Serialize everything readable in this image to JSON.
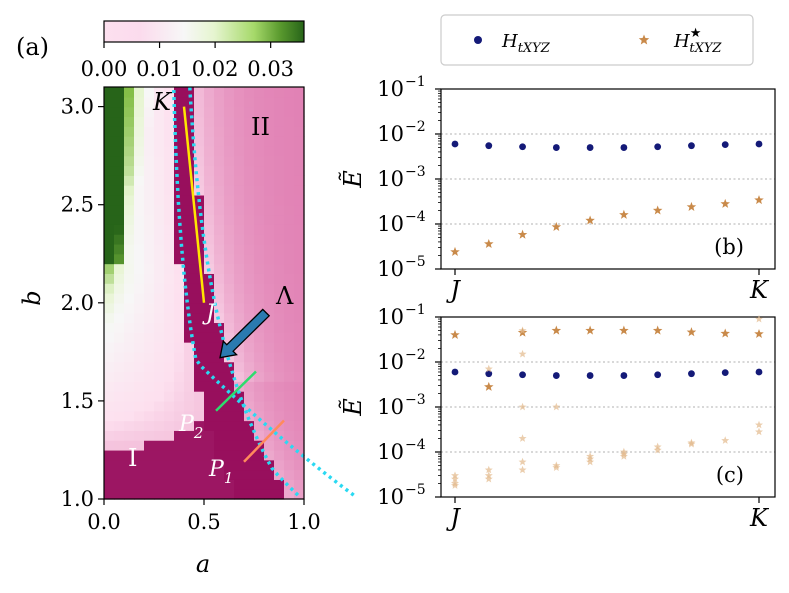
{
  "figure": {
    "panel_a_label": "(a)",
    "panel_b_label": "(b)",
    "panel_c_label": "(c)"
  },
  "legend": {
    "series1": "H_tXYZ",
    "series2": "H*_tXYZ"
  },
  "chart_data": [
    {
      "type": "heatmap",
      "panel": "(a)",
      "xlabel": "a",
      "ylabel": "b",
      "xlim": [
        0.0,
        1.0
      ],
      "ylim": [
        1.0,
        3.1
      ],
      "x_ticks": [
        "0.0",
        "0.5",
        "1.0"
      ],
      "y_ticks": [
        "1.0",
        "1.5",
        "2.0",
        "2.5",
        "3.0"
      ],
      "colorbar": {
        "range": [
          0.0,
          0.036
        ],
        "ticks": [
          "0.00",
          "0.01",
          "0.02",
          "0.03"
        ],
        "colormap": [
          "#8e0152",
          "#de77ae",
          "#fde0ef",
          "#f7f7f7",
          "#e6f5d0",
          "#7fbc41",
          "#276419"
        ]
      },
      "regions": [
        "I",
        "II"
      ],
      "point_labels": [
        "K",
        "J",
        "P2",
        "P1",
        "Λ"
      ],
      "overlays": {
        "K_to_J_line_color": "#ffe600",
        "P2_line_color": "#2ddc6e",
        "P1_line_color": "#ff8a5c",
        "boundary_color": "#29d9f2",
        "arrow_color": "#2a7ab0"
      }
    },
    {
      "type": "scatter",
      "panel": "(b)",
      "ylabel": "Ẽ",
      "yscale": "log",
      "ylim": [
        1e-05,
        0.1
      ],
      "y_ticks": [
        "10^-1",
        "10^-2",
        "10^-3",
        "10^-4",
        "10^-5"
      ],
      "x_ticks": [
        "J",
        "K"
      ],
      "series": [
        {
          "name": "H_tXYZ",
          "color": "#141a78",
          "values": [
            0.006,
            0.0055,
            0.0052,
            0.005,
            0.005,
            0.005,
            0.0052,
            0.0055,
            0.0058,
            0.006
          ]
        },
        {
          "name": "H*_tXYZ",
          "color": "#c98a4a",
          "values": [
            2.4e-05,
            3.6e-05,
            5.8e-05,
            8.6e-05,
            0.00012,
            0.00016,
            0.0002,
            0.00024,
            0.00028,
            0.00034
          ]
        }
      ]
    },
    {
      "type": "scatter",
      "panel": "(c)",
      "ylabel": "Ẽ",
      "yscale": "log",
      "ylim": [
        1e-05,
        0.1
      ],
      "y_ticks": [
        "10^-1",
        "10^-2",
        "10^-3",
        "10^-4",
        "10^-5"
      ],
      "x_ticks": [
        "J",
        "K"
      ],
      "series": [
        {
          "name": "H_tXYZ",
          "color": "#141a78",
          "values": [
            0.006,
            0.0055,
            0.0052,
            0.005,
            0.005,
            0.005,
            0.0052,
            0.0055,
            0.0058,
            0.006
          ]
        },
        {
          "name": "H*_tXYZ (main)",
          "color": "#c98a4a",
          "values": [
            0.04,
            0.0028,
            0.045,
            0.05,
            0.05,
            0.05,
            0.05,
            0.046,
            0.043,
            0.042
          ]
        },
        {
          "name": "H*_tXYZ (faint)",
          "color": "#e3b98c",
          "points": [
            [
              0,
              3e-05
            ],
            [
              0,
              2.5e-05
            ],
            [
              0,
              2e-05
            ],
            [
              0,
              1.8e-05
            ],
            [
              1,
              4e-05
            ],
            [
              1,
              3e-05
            ],
            [
              1,
              2.5e-05
            ],
            [
              1,
              0.007
            ],
            [
              2,
              0.05
            ],
            [
              2,
              0.015
            ],
            [
              2,
              0.001
            ],
            [
              2,
              0.0002
            ],
            [
              2,
              6e-05
            ],
            [
              2,
              4e-05
            ],
            [
              3,
              0.001
            ],
            [
              3,
              5e-05
            ],
            [
              3,
              4.5e-05
            ],
            [
              4,
              8e-05
            ],
            [
              4,
              7e-05
            ],
            [
              4,
              6e-05
            ],
            [
              5,
              0.0001
            ],
            [
              5,
              9e-05
            ],
            [
              5,
              8e-05
            ],
            [
              6,
              0.00013
            ],
            [
              6,
              0.00011
            ],
            [
              7,
              0.00016
            ],
            [
              7,
              0.00015
            ],
            [
              8,
              0.00018
            ],
            [
              9,
              0.09
            ],
            [
              9,
              0.0004
            ],
            [
              9,
              0.00028
            ]
          ]
        }
      ]
    }
  ]
}
